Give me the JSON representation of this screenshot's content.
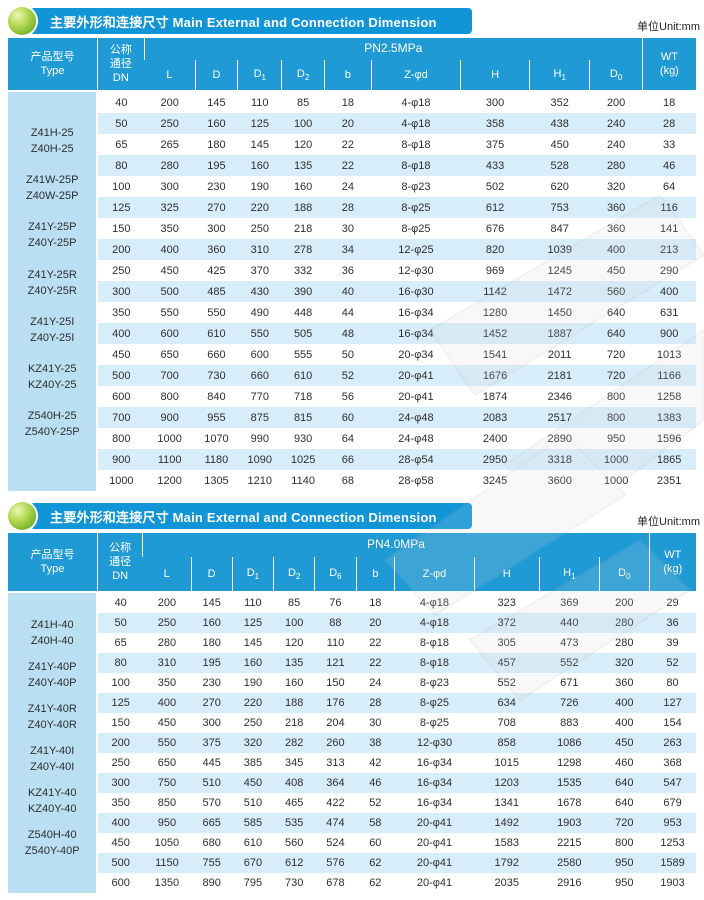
{
  "page": {
    "unit": "单位Unit:mm"
  },
  "section": {
    "title_zh": "主要外形和连接尺寸",
    "title_en": "Main External and Connection Dimension",
    "bullet_icon": "green-sphere",
    "banner_color": "#1195d6"
  },
  "headers": {
    "type": "产品型号\nType",
    "dn": "公称\n通径\nDN",
    "wt": "WT\n(kg)"
  },
  "colors": {
    "banner_blue": "#1195d6",
    "table_header_blue": "#1f9ad5",
    "type_column_blue": "#badff3",
    "zebra_row_blue": "#d8edfa"
  },
  "tables": [
    {
      "id": "pn25",
      "pressure": "PN2.5MPa",
      "dims": [
        "L",
        "D",
        "D1",
        "D2",
        "b",
        "Z-φd",
        "H",
        "H1",
        "D0"
      ],
      "type_groups": [
        [
          "Z41H-25",
          "Z40H-25"
        ],
        [
          "Z41W-25P",
          "Z40W-25P"
        ],
        [
          "Z41Y-25P",
          "Z40Y-25P"
        ],
        [
          "Z41Y-25R",
          "Z40Y-25R"
        ],
        [
          "Z41Y-25I",
          "Z40Y-25I"
        ],
        [
          "KZ41Y-25",
          "KZ40Y-25"
        ],
        [
          "Z540H-25",
          "Z540Y-25P"
        ]
      ],
      "rows": [
        [
          40,
          200,
          145,
          110,
          85,
          18,
          "4-φ18",
          300,
          352,
          200,
          18
        ],
        [
          50,
          250,
          160,
          125,
          100,
          20,
          "4-φ18",
          358,
          438,
          240,
          28
        ],
        [
          65,
          265,
          180,
          145,
          120,
          22,
          "8-φ18",
          375,
          450,
          240,
          33
        ],
        [
          80,
          280,
          195,
          160,
          135,
          22,
          "8-φ18",
          433,
          528,
          280,
          46
        ],
        [
          100,
          300,
          230,
          190,
          160,
          24,
          "8-φ23",
          502,
          620,
          320,
          64
        ],
        [
          125,
          325,
          270,
          220,
          188,
          28,
          "8-φ25",
          612,
          753,
          360,
          116
        ],
        [
          150,
          350,
          300,
          250,
          218,
          30,
          "8-φ25",
          676,
          847,
          360,
          141
        ],
        [
          200,
          400,
          360,
          310,
          278,
          34,
          "12-φ25",
          820,
          1039,
          400,
          213
        ],
        [
          250,
          450,
          425,
          370,
          332,
          36,
          "12-φ30",
          969,
          1245,
          450,
          290
        ],
        [
          300,
          500,
          485,
          430,
          390,
          40,
          "16-φ30",
          1142,
          1472,
          560,
          400
        ],
        [
          350,
          550,
          550,
          490,
          448,
          44,
          "16-φ34",
          1280,
          1450,
          640,
          631
        ],
        [
          400,
          600,
          610,
          550,
          505,
          48,
          "16-φ34",
          1452,
          1887,
          640,
          900
        ],
        [
          450,
          650,
          660,
          600,
          555,
          50,
          "20-φ34",
          1541,
          2011,
          720,
          1013
        ],
        [
          500,
          700,
          730,
          660,
          610,
          52,
          "20-φ41",
          1676,
          2181,
          720,
          1166
        ],
        [
          600,
          800,
          840,
          770,
          718,
          56,
          "20-φ41",
          1874,
          2346,
          800,
          1258
        ],
        [
          700,
          900,
          955,
          875,
          815,
          60,
          "24-φ48",
          2083,
          2517,
          800,
          1383
        ],
        [
          800,
          1000,
          1070,
          990,
          930,
          64,
          "24-φ48",
          2400,
          2890,
          950,
          1596
        ],
        [
          900,
          1100,
          1180,
          1090,
          1025,
          66,
          "28-φ54",
          2950,
          3318,
          1000,
          1865
        ],
        [
          1000,
          1200,
          1305,
          1210,
          1140,
          68,
          "28-φ58",
          3245,
          3600,
          1000,
          2351
        ]
      ]
    },
    {
      "id": "pn40",
      "pressure": "PN4.0MPa",
      "dims": [
        "L",
        "D",
        "D1",
        "D2",
        "D6",
        "b",
        "Z-φd",
        "H",
        "H1",
        "D0"
      ],
      "type_groups": [
        [
          "Z41H-40",
          "Z40H-40"
        ],
        [
          "Z41Y-40P",
          "Z40Y-40P"
        ],
        [
          "Z41Y-40R",
          "Z40Y-40R"
        ],
        [
          "Z41Y-40I",
          "Z40Y-40I"
        ],
        [
          "KZ41Y-40",
          "KZ40Y-40"
        ],
        [
          "Z540H-40",
          "Z540Y-40P"
        ]
      ],
      "rows": [
        [
          40,
          200,
          145,
          110,
          85,
          76,
          18,
          "4-φ18",
          323,
          369,
          200,
          29
        ],
        [
          50,
          250,
          160,
          125,
          100,
          88,
          20,
          "4-φ18",
          372,
          440,
          280,
          36
        ],
        [
          65,
          280,
          180,
          145,
          120,
          110,
          22,
          "8-φ18",
          305,
          473,
          280,
          39
        ],
        [
          80,
          310,
          195,
          160,
          135,
          121,
          22,
          "8-φ18",
          457,
          552,
          320,
          52
        ],
        [
          100,
          350,
          230,
          190,
          160,
          150,
          24,
          "8-φ23",
          552,
          671,
          360,
          80
        ],
        [
          125,
          400,
          270,
          220,
          188,
          176,
          28,
          "8-φ25",
          634,
          726,
          400,
          127
        ],
        [
          150,
          450,
          300,
          250,
          218,
          204,
          30,
          "8-φ25",
          708,
          883,
          400,
          154
        ],
        [
          200,
          550,
          375,
          320,
          282,
          260,
          38,
          "12-φ30",
          858,
          1086,
          450,
          263
        ],
        [
          250,
          650,
          445,
          385,
          345,
          313,
          42,
          "16-φ34",
          1015,
          1298,
          460,
          368
        ],
        [
          300,
          750,
          510,
          450,
          408,
          364,
          46,
          "16-φ34",
          1203,
          1535,
          640,
          547
        ],
        [
          350,
          850,
          570,
          510,
          465,
          422,
          52,
          "16-φ34",
          1341,
          1678,
          640,
          679
        ],
        [
          400,
          950,
          665,
          585,
          535,
          474,
          58,
          "20-φ41",
          1492,
          1903,
          720,
          953
        ],
        [
          450,
          1050,
          680,
          610,
          560,
          524,
          60,
          "20-φ41",
          1583,
          2215,
          800,
          1253
        ],
        [
          500,
          1150,
          755,
          670,
          612,
          576,
          62,
          "20-φ41",
          1792,
          2580,
          950,
          1589
        ],
        [
          600,
          1350,
          890,
          795,
          730,
          678,
          62,
          "20-φ41",
          2035,
          2916,
          950,
          1903
        ]
      ]
    }
  ]
}
